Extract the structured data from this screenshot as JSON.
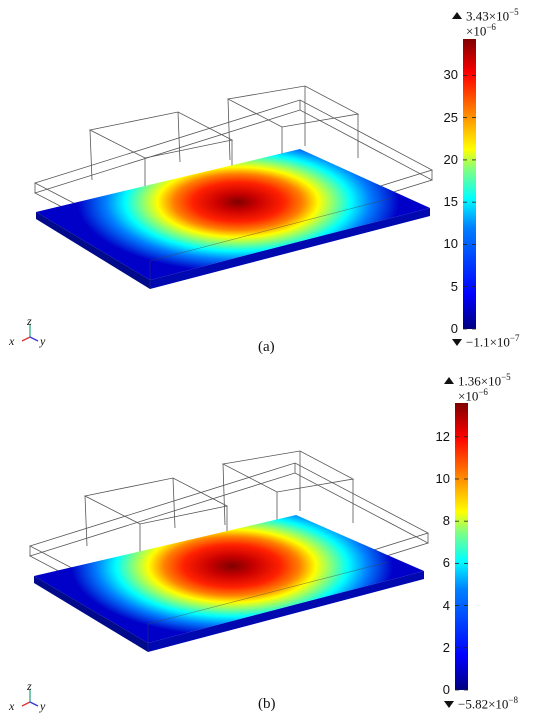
{
  "colors": {
    "jet": [
      "#00007f",
      "#0000ff",
      "#0080ff",
      "#00ffff",
      "#80ff80",
      "#ffff00",
      "#ff8000",
      "#ff0000",
      "#7f0000"
    ],
    "frame": "#555555",
    "slab_dark": "#000a8a"
  },
  "panels": [
    {
      "label": "(a)",
      "max_prefix": "3.43×10",
      "max_exp": "−5",
      "scale_prefix": "×10",
      "scale_exp": "−6",
      "min_prefix": "−1.1×10",
      "min_exp": "−7",
      "ticks": [
        "0",
        "5",
        "10",
        "15",
        "20",
        "25",
        "30"
      ],
      "tick_values": [
        0,
        5,
        10,
        15,
        20,
        25,
        30
      ],
      "range": [
        0,
        34.3
      ],
      "axes": {
        "z": "z",
        "x": "x",
        "y": "y"
      }
    },
    {
      "label": "(b)",
      "max_prefix": "1.36×10",
      "max_exp": "−5",
      "scale_prefix": "×10",
      "scale_exp": "−6",
      "min_prefix": "−5.82×10",
      "min_exp": "−8",
      "ticks": [
        "0",
        "2",
        "4",
        "6",
        "8",
        "10",
        "12"
      ],
      "tick_values": [
        0,
        2,
        4,
        6,
        8,
        10,
        12
      ],
      "range": [
        0,
        13.6
      ],
      "axes": {
        "z": "z",
        "x": "x",
        "y": "y"
      }
    }
  ]
}
